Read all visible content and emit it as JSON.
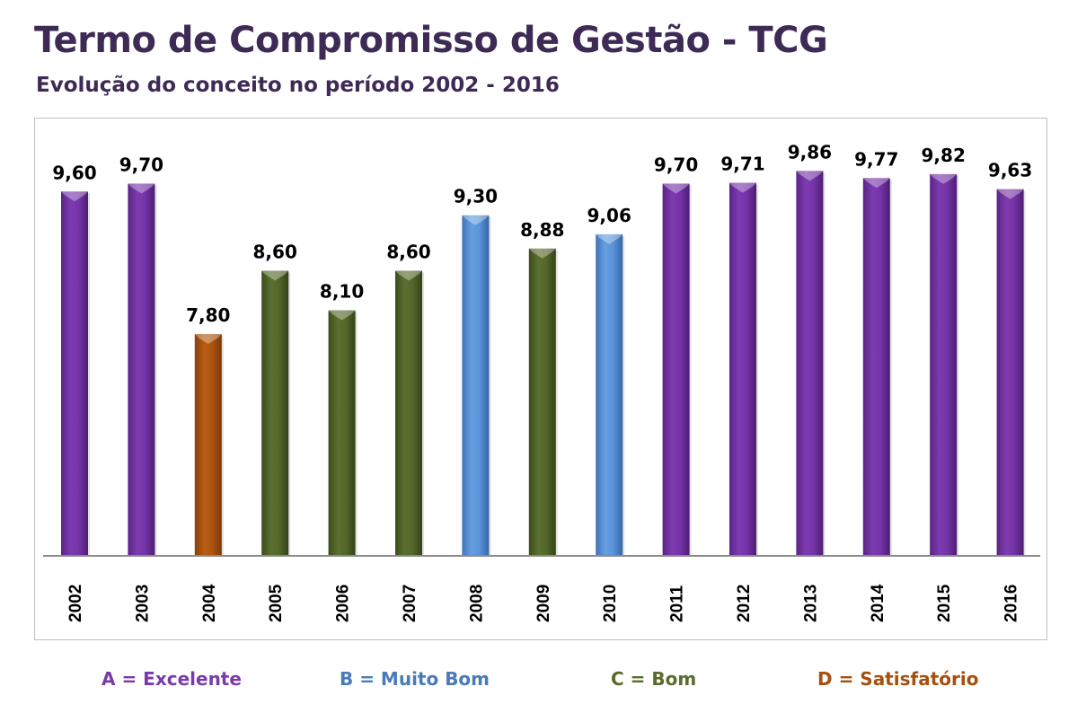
{
  "header": {
    "title": "Termo de Compromisso de Gestão - TCG",
    "subtitle": "Evolução do conceito no período 2002 - 2016"
  },
  "colors": {
    "title": "#3d2a55",
    "A": "#7030a0",
    "B": "#558ed5",
    "C": "#4f6228",
    "D": "#a5500f"
  },
  "legend": [
    {
      "grade": "A",
      "label": "A = Excelente",
      "color": "#7a3aaa"
    },
    {
      "grade": "B",
      "label": "B = Muito Bom",
      "color": "#4a7ab8"
    },
    {
      "grade": "C",
      "label": "C = Bom",
      "color": "#5a6b2e"
    },
    {
      "grade": "D",
      "label": "D = Satisfatório",
      "color": "#a5500f"
    }
  ],
  "chart_data": {
    "type": "bar",
    "title": "Termo de Compromisso de Gestão - TCG",
    "subtitle": "Evolução do conceito no período 2002 - 2016",
    "xlabel": "",
    "ylabel": "",
    "ylim": [
      5,
      10
    ],
    "grid": false,
    "legend_position": "bottom",
    "categories": [
      "2002",
      "2003",
      "2004",
      "2005",
      "2006",
      "2007",
      "2008",
      "2009",
      "2010",
      "2011",
      "2012",
      "2013",
      "2014",
      "2015",
      "2016"
    ],
    "values": [
      9.6,
      9.7,
      7.8,
      8.6,
      8.1,
      8.6,
      9.3,
      8.88,
      9.06,
      9.7,
      9.71,
      9.86,
      9.77,
      9.82,
      9.63
    ],
    "labels": [
      "9,60",
      "9,70",
      "7,80",
      "8,60",
      "8,10",
      "8,60",
      "9,30",
      "8,88",
      "9,06",
      "9,70",
      "9,71",
      "9,86",
      "9,77",
      "9,82",
      "9,63"
    ],
    "grades": [
      "A",
      "A",
      "D",
      "C",
      "C",
      "C",
      "B",
      "C",
      "B",
      "A",
      "A",
      "A",
      "A",
      "A",
      "A"
    ]
  }
}
